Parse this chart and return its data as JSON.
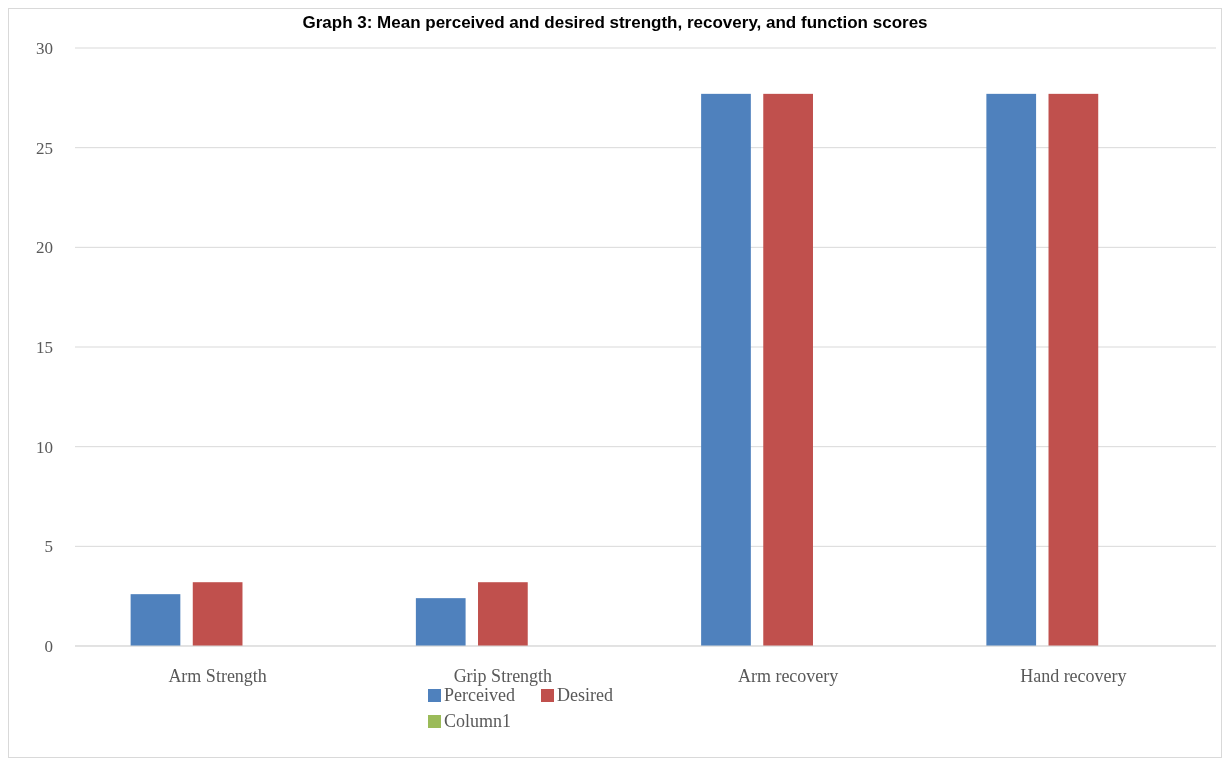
{
  "chart_data": {
    "type": "bar",
    "title": "Graph 3: Mean perceived and desired strength, recovery, and function scores",
    "categories": [
      "Arm Strength",
      "Grip Strength",
      "Arm recovery",
      "Hand recovery"
    ],
    "series": [
      {
        "name": "Perceived",
        "color": "#4f81bd",
        "values": [
          2.6,
          2.4,
          27.7,
          27.7
        ]
      },
      {
        "name": "Desired",
        "color": "#c0504d",
        "values": [
          3.2,
          3.2,
          27.7,
          27.7
        ]
      },
      {
        "name": "Column1",
        "color": "#9bbb59",
        "values": [
          null,
          null,
          null,
          null
        ]
      }
    ],
    "ylim": [
      0,
      30
    ],
    "yticks": [
      0,
      5,
      10,
      15,
      20,
      25,
      30
    ],
    "grid": "y",
    "legend": "bottom"
  }
}
